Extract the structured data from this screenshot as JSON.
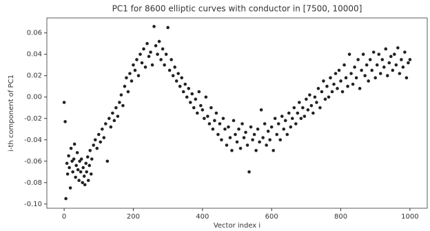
{
  "chart_data": {
    "type": "scatter",
    "title": "PC1 for 8600 elliptic curves with conductor in [7500, 10000]",
    "x_label": "Vector index i",
    "y_label": "i-th component of PC1",
    "color": "#222222",
    "grid": false,
    "xlim": [
      -50,
      1050
    ],
    "ylim": [
      -0.104,
      0.074
    ],
    "xticks": [
      0,
      200,
      400,
      600,
      800,
      1000
    ],
    "yticks": [
      {
        "value": -0.1,
        "label": "-0.10"
      },
      -0.08,
      -0.06,
      -0.04,
      -0.02,
      {
        "value": 0,
        "label": "0.00"
      },
      0.02,
      0.04,
      0.06
    ],
    "x": [
      0,
      3,
      5,
      8,
      10,
      13,
      15,
      18,
      20,
      23,
      25,
      28,
      30,
      33,
      35,
      38,
      40,
      43,
      45,
      48,
      50,
      53,
      55,
      58,
      60,
      63,
      65,
      68,
      70,
      73,
      75,
      78,
      80,
      85,
      90,
      95,
      100,
      105,
      110,
      115,
      120,
      125,
      130,
      135,
      140,
      145,
      150,
      155,
      160,
      165,
      170,
      175,
      180,
      185,
      190,
      195,
      200,
      205,
      210,
      215,
      220,
      225,
      230,
      235,
      240,
      245,
      250,
      255,
      260,
      265,
      270,
      275,
      280,
      285,
      290,
      295,
      300,
      305,
      310,
      315,
      320,
      325,
      330,
      335,
      340,
      345,
      350,
      355,
      360,
      365,
      370,
      375,
      380,
      385,
      390,
      395,
      400,
      405,
      410,
      415,
      420,
      425,
      430,
      435,
      440,
      445,
      450,
      455,
      460,
      465,
      470,
      475,
      480,
      485,
      490,
      495,
      500,
      505,
      510,
      515,
      520,
      525,
      530,
      535,
      540,
      545,
      550,
      555,
      560,
      565,
      570,
      575,
      580,
      585,
      590,
      595,
      600,
      605,
      610,
      615,
      620,
      625,
      630,
      635,
      640,
      645,
      650,
      655,
      660,
      665,
      670,
      675,
      680,
      685,
      690,
      695,
      700,
      705,
      710,
      715,
      720,
      725,
      730,
      735,
      740,
      745,
      750,
      755,
      760,
      765,
      770,
      775,
      780,
      785,
      790,
      795,
      800,
      805,
      810,
      815,
      820,
      825,
      830,
      835,
      840,
      845,
      850,
      855,
      860,
      865,
      870,
      875,
      880,
      885,
      890,
      895,
      900,
      905,
      910,
      915,
      920,
      925,
      930,
      935,
      940,
      945,
      950,
      955,
      960,
      965,
      970,
      975,
      980,
      985,
      990,
      995,
      1000
    ],
    "values": [
      -0.005,
      -0.023,
      -0.095,
      -0.062,
      -0.072,
      -0.055,
      -0.066,
      -0.085,
      -0.048,
      -0.06,
      -0.07,
      -0.058,
      -0.044,
      -0.075,
      -0.064,
      -0.052,
      -0.068,
      -0.078,
      -0.06,
      -0.07,
      -0.058,
      -0.08,
      -0.066,
      -0.074,
      -0.082,
      -0.062,
      -0.07,
      -0.056,
      -0.078,
      -0.064,
      -0.05,
      -0.072,
      -0.058,
      -0.045,
      -0.04,
      -0.048,
      -0.035,
      -0.042,
      -0.03,
      -0.038,
      -0.025,
      -0.06,
      -0.02,
      -0.028,
      -0.015,
      -0.022,
      -0.01,
      -0.018,
      -0.005,
      0.002,
      -0.008,
      0.01,
      0.018,
      0.005,
      0.022,
      0.015,
      0.03,
      0.025,
      0.035,
      0.02,
      0.04,
      0.032,
      0.045,
      0.028,
      0.05,
      0.038,
      0.042,
      0.03,
      0.066,
      0.048,
      0.04,
      0.052,
      0.035,
      0.045,
      0.03,
      0.04,
      0.065,
      0.025,
      0.035,
      0.02,
      0.028,
      0.015,
      0.022,
      0.01,
      0.018,
      0.005,
      0.012,
      0,
      0.008,
      -0.005,
      0.003,
      -0.01,
      -0.002,
      -0.015,
      0.005,
      -0.008,
      -0.012,
      -0.02,
      0,
      -0.018,
      -0.025,
      -0.01,
      -0.03,
      -0.022,
      -0.015,
      -0.035,
      -0.025,
      -0.04,
      -0.02,
      -0.03,
      -0.045,
      -0.028,
      -0.038,
      -0.05,
      -0.022,
      -0.035,
      -0.042,
      -0.03,
      -0.048,
      -0.025,
      -0.038,
      -0.033,
      -0.045,
      -0.07,
      -0.028,
      -0.04,
      -0.035,
      -0.05,
      -0.03,
      -0.042,
      -0.012,
      -0.038,
      -0.025,
      -0.045,
      -0.032,
      -0.04,
      -0.028,
      -0.05,
      -0.02,
      -0.035,
      -0.025,
      -0.04,
      -0.018,
      -0.03,
      -0.022,
      -0.035,
      -0.015,
      -0.028,
      -0.02,
      -0.01,
      -0.025,
      -0.015,
      -0.005,
      -0.02,
      -0.01,
      -0.018,
      -0.002,
      -0.012,
      0.002,
      -0.008,
      -0.015,
      0,
      -0.005,
      0.008,
      -0.01,
      0.005,
      0.015,
      -0.002,
      0.01,
      0,
      0.018,
      0.005,
      0.012,
      0.022,
      0.008,
      0.025,
      0.015,
      0.005,
      0.03,
      0.018,
      0.01,
      0.04,
      0.022,
      0.012,
      0.028,
      0.018,
      0.035,
      0.008,
      0.025,
      0.04,
      0.02,
      0.03,
      0.015,
      0.035,
      0.025,
      0.042,
      0.018,
      0.03,
      0.04,
      0.022,
      0.035,
      0.028,
      0.045,
      0.02,
      0.032,
      0.038,
      0.025,
      0.04,
      0.03,
      0.046,
      0.022,
      0.035,
      0.028,
      0.042,
      0.018,
      0.032,
      0.035
    ]
  }
}
